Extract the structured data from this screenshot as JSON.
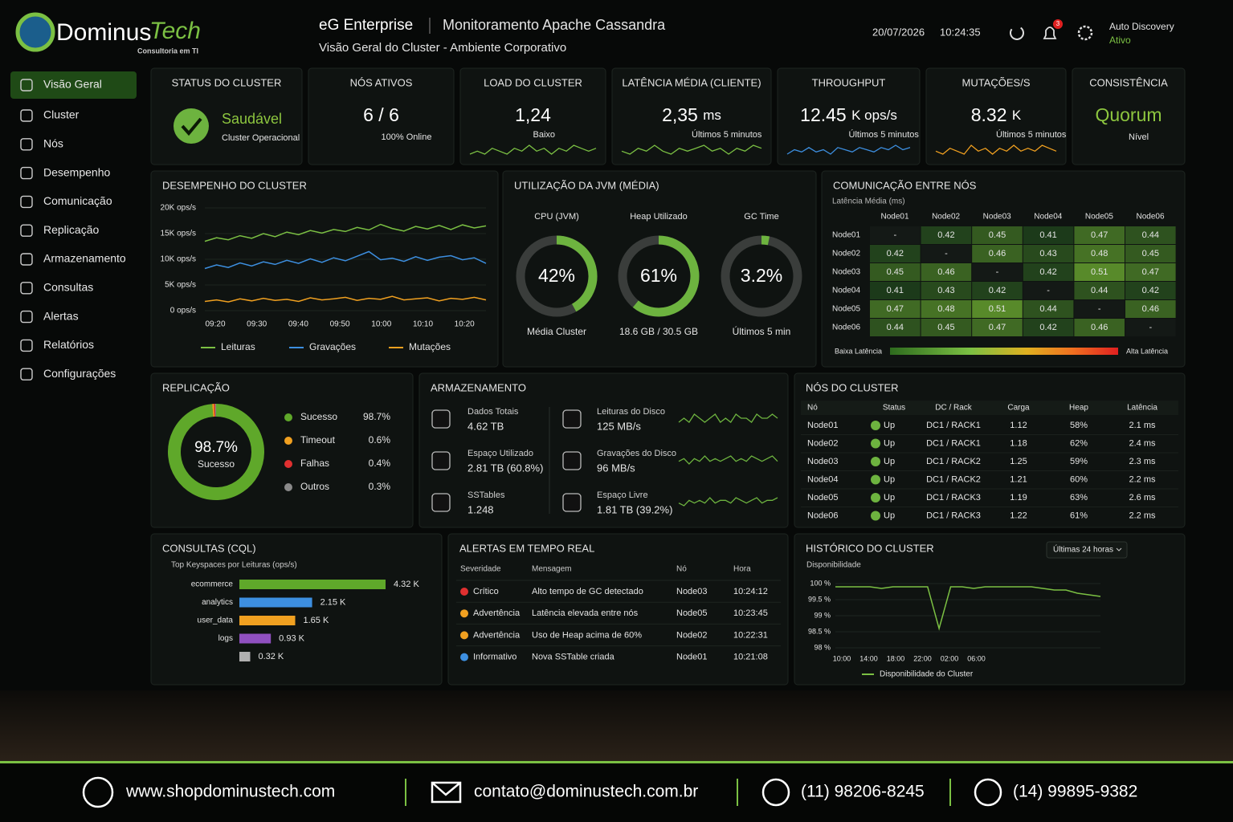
{
  "header": {
    "brand_a": "Dominus",
    "brand_b": "Tech",
    "tagline": "Consultoria em TI",
    "title": "eG Enterprise",
    "subtitle": "Monitoramento Apache Cassandra",
    "description": "Visão Geral do Cluster - Ambiente Corporativo",
    "date": "20/07/2026",
    "time": "10:24:35",
    "notifications": "3",
    "auto_label": "Auto Discovery",
    "auto_status": "Ativo"
  },
  "sidebar": [
    "Visão Geral",
    "Cluster",
    "Nós",
    "Desempenho",
    "Comunicação",
    "Replicação",
    "Armazenamento",
    "Consultas",
    "Alertas",
    "Relatórios",
    "Configurações"
  ],
  "kpis": [
    {
      "title": "STATUS DO CLUSTER",
      "value": "Saudável",
      "sub": "Cluster Operacional"
    },
    {
      "title": "NÓS ATIVOS",
      "value": "6 / 6",
      "sub": "100% Online"
    },
    {
      "title": "LOAD DO CLUSTER",
      "value": "1,24",
      "sub": "Baixo",
      "color": "#7bc043",
      "spark": [
        4,
        5,
        4,
        6,
        5,
        4,
        6,
        5,
        7,
        5,
        6,
        4,
        6,
        5,
        7,
        6,
        5,
        6
      ]
    },
    {
      "title": "LATÊNCIA MÉDIA (CLIENTE)",
      "value": "2,35",
      "unit": "ms",
      "sub": "Últimos 5 minutos",
      "color": "#7bc043",
      "spark": [
        5,
        4,
        6,
        5,
        7,
        5,
        4,
        6,
        5,
        6,
        7,
        5,
        6,
        4,
        6,
        5,
        7,
        6
      ]
    },
    {
      "title": "THROUGHPUT",
      "value": "12.45",
      "unit": "K ops/s",
      "sub": "Últimos 5 minutos",
      "color": "#3d8fe0",
      "spark": [
        4,
        6,
        5,
        7,
        5,
        6,
        4,
        7,
        6,
        5,
        7,
        6,
        5,
        7,
        6,
        8,
        6,
        7
      ]
    },
    {
      "title": "MUTAÇÕES/S",
      "value": "8.32",
      "unit": "K",
      "sub": "Últimos 5 minutos",
      "color": "#f0a020",
      "spark": [
        5,
        4,
        6,
        5,
        4,
        7,
        5,
        6,
        4,
        6,
        5,
        7,
        5,
        6,
        5,
        7,
        6,
        5
      ]
    },
    {
      "title": "CONSISTÊNCIA",
      "value": "Quorum",
      "sub": "Nível"
    }
  ],
  "performance": {
    "title": "DESEMPENHO DO CLUSTER",
    "ylim": [
      0,
      20000
    ],
    "yticks": [
      {
        "value": 20000,
        "label": "20K ops/s"
      },
      {
        "value": 15000,
        "label": "15K ops/s"
      },
      {
        "value": 10000,
        "label": "10K ops/s"
      },
      {
        "value": 5000,
        "label": "5K ops/s"
      },
      {
        "value": 0,
        "label": "0 ops/s"
      }
    ],
    "xticks": [
      "09:20",
      "09:30",
      "09:40",
      "09:50",
      "10:00",
      "10:10",
      "10:20"
    ],
    "series": [
      {
        "name": "Leituras",
        "color": "#7bc043",
        "values": [
          13500,
          14200,
          13800,
          14600,
          14100,
          15000,
          14400,
          15300,
          14800,
          15600,
          15100,
          15800,
          15400,
          16200,
          15700,
          16800,
          16000,
          15500,
          16400,
          15900,
          16600,
          15800,
          16700,
          16100,
          16500
        ]
      },
      {
        "name": "Gravações",
        "color": "#3d8fe0",
        "values": [
          8200,
          8900,
          8400,
          9300,
          8700,
          9500,
          9000,
          9800,
          9200,
          10100,
          9400,
          10300,
          9700,
          10600,
          11500,
          9900,
          10200,
          9600,
          10500,
          9800,
          10400,
          10700,
          9900,
          10300,
          9200
        ]
      },
      {
        "name": "Mutações",
        "color": "#f0a020",
        "values": [
          1800,
          2100,
          1700,
          2300,
          1900,
          2400,
          2000,
          2200,
          1800,
          2500,
          2100,
          2300,
          2600,
          2000,
          2400,
          2200,
          2800,
          2100,
          2300,
          2500,
          1900,
          2400,
          2200,
          2600,
          2100
        ]
      }
    ]
  },
  "jvm": {
    "title": "UTILIZAÇÃO DA JVM (MÉDIA)",
    "gauges": [
      {
        "label": "CPU (JVM)",
        "value": 42,
        "value_label": "42%",
        "sub": "Média Cluster"
      },
      {
        "label": "Heap Utilizado",
        "value": 61,
        "value_label": "61%",
        "sub": "18.6 GB / 30.5 GB"
      },
      {
        "label": "GC Time",
        "value": 3.2,
        "value_label": "3.2%",
        "sub": "Últimos 5 min"
      }
    ]
  },
  "communication": {
    "title": "COMUNICAÇÃO ENTRE NÓS",
    "subtitle": "Latência Média (ms)",
    "columns": [
      "Node01",
      "Node02",
      "Node03",
      "Node04",
      "Node05",
      "Node06"
    ],
    "rows": [
      {
        "name": "Node01",
        "cells": [
          "-",
          "0.42",
          "0.45",
          "0.41",
          "0.47",
          "0.44"
        ]
      },
      {
        "name": "Node02",
        "cells": [
          "0.42",
          "-",
          "0.46",
          "0.43",
          "0.48",
          "0.45"
        ]
      },
      {
        "name": "Node03",
        "cells": [
          "0.45",
          "0.46",
          "-",
          "0.42",
          "0.51",
          "0.47"
        ]
      },
      {
        "name": "Node04",
        "cells": [
          "0.41",
          "0.43",
          "0.42",
          "-",
          "0.44",
          "0.42"
        ]
      },
      {
        "name": "Node05",
        "cells": [
          "0.47",
          "0.48",
          "0.51",
          "0.44",
          "-",
          "0.46"
        ]
      },
      {
        "name": "Node06",
        "cells": [
          "0.44",
          "0.45",
          "0.47",
          "0.42",
          "0.46",
          "-"
        ]
      }
    ],
    "low_label": "Baixa Latência",
    "high_label": "Alta Latência"
  },
  "replication": {
    "title": "REPLICAÇÃO",
    "center_value": "98.7%",
    "center_label": "Sucesso",
    "items": [
      {
        "name": "Sucesso",
        "value": 98.7,
        "value_label": "98.7%",
        "color": "#5fa82a"
      },
      {
        "name": "Timeout",
        "value": 0.6,
        "value_label": "0.6%",
        "color": "#f0a020"
      },
      {
        "name": "Falhas",
        "value": 0.4,
        "value_label": "0.4%",
        "color": "#e03030"
      },
      {
        "name": "Outros",
        "value": 0.3,
        "value_label": "0.3%",
        "color": "#8a8a8a"
      }
    ]
  },
  "storage": {
    "title": "ARMAZENAMENTO",
    "items": [
      {
        "label": "Dados Totais",
        "value": "4.62 TB"
      },
      {
        "label": "Espaço Utilizado",
        "value": "2.81 TB (60.8%)"
      },
      {
        "label": "SSTables",
        "value": "1.248"
      },
      {
        "label": "Leituras do Disco",
        "value": "125 MB/s",
        "spark": [
          5,
          6,
          5,
          7,
          6,
          5,
          6,
          7,
          5,
          6,
          5,
          7,
          6,
          6,
          5,
          7,
          6,
          6,
          7,
          6
        ]
      },
      {
        "label": "Gravações do Disco",
        "value": "96 MB/s",
        "spark": [
          5,
          6,
          4,
          6,
          5,
          7,
          5,
          6,
          5,
          6,
          7,
          5,
          6,
          5,
          7,
          6,
          5,
          6,
          7,
          5
        ]
      },
      {
        "label": "Espaço Livre",
        "value": "1.81 TB (39.2%)",
        "spark": [
          5,
          4,
          6,
          5,
          6,
          5,
          7,
          5,
          6,
          6,
          5,
          7,
          6,
          5,
          6,
          7,
          5,
          6,
          6,
          7
        ]
      }
    ]
  },
  "nodes": {
    "title": "NÓS DO CLUSTER",
    "headers": [
      "Nó",
      "Status",
      "DC / Rack",
      "Carga",
      "Heap",
      "Latência"
    ],
    "rows": [
      [
        "Node01",
        "Up",
        "DC1 / RACK1",
        "1.12",
        "58%",
        "2.1 ms"
      ],
      [
        "Node02",
        "Up",
        "DC1 / RACK1",
        "1.18",
        "62%",
        "2.4 ms"
      ],
      [
        "Node03",
        "Up",
        "DC1 / RACK2",
        "1.25",
        "59%",
        "2.3 ms"
      ],
      [
        "Node04",
        "Up",
        "DC1 / RACK2",
        "1.21",
        "60%",
        "2.2 ms"
      ],
      [
        "Node05",
        "Up",
        "DC1 / RACK3",
        "1.19",
        "63%",
        "2.6 ms"
      ],
      [
        "Node06",
        "Up",
        "DC1 / RACK3",
        "1.22",
        "61%",
        "2.2 ms"
      ]
    ]
  },
  "queries": {
    "title": "CONSULTAS (CQL)",
    "subtitle": "Top Keyspaces por Leituras (ops/s)",
    "xlim": [
      0,
      4320
    ],
    "categories": [
      "ecommerce",
      "analytics",
      "user_data",
      "logs",
      null
    ],
    "values": [
      4320,
      2150,
      1650,
      930,
      320
    ],
    "value_labels": [
      "4.32 K",
      "2.15 K",
      "1.65 K",
      "0.93 K",
      "0.32 K"
    ],
    "colors": [
      "#5fa82a",
      "#3d8fe0",
      "#f0a020",
      "#9050c0",
      "#b0b0b0"
    ]
  },
  "alerts": {
    "title": "ALERTAS EM TEMPO REAL",
    "headers": [
      "Severidade",
      "Mensagem",
      "Nó",
      "Hora"
    ],
    "rows": [
      {
        "severity": "Crítico",
        "color": "#e03030",
        "message": "Alto tempo de GC detectado",
        "node": "Node03",
        "time": "10:24:12"
      },
      {
        "severity": "Advertência",
        "color": "#f0a020",
        "message": "Latência elevada entre nós",
        "node": "Node05",
        "time": "10:23:45"
      },
      {
        "severity": "Advertência",
        "color": "#f0a020",
        "message": "Uso de Heap acima de 60%",
        "node": "Node02",
        "time": "10:22:31"
      },
      {
        "severity": "Informativo",
        "color": "#3d8fe0",
        "message": "Nova SSTable criada",
        "node": "Node01",
        "time": "10:21:08"
      }
    ]
  },
  "history": {
    "title": "HISTÓRICO DO CLUSTER",
    "range": "Últimas 24 horas",
    "subtitle": "Disponibilidade",
    "ylim": [
      98,
      100
    ],
    "yticks": [
      {
        "value": 100,
        "label": "100 %"
      },
      {
        "value": 99.5,
        "label": "99.5 %"
      },
      {
        "value": 99,
        "label": "99 %"
      },
      {
        "value": 98.5,
        "label": "98.5 %"
      },
      {
        "value": 98,
        "label": "98 %"
      }
    ],
    "xticks": [
      "10:00",
      "14:00",
      "18:00",
      "22:00",
      "02:00",
      "06:00"
    ],
    "series": [
      {
        "name": "Disponibilidade do Cluster",
        "color": "#7bc043",
        "values": [
          99.9,
          99.9,
          99.9,
          99.9,
          99.85,
          99.9,
          99.9,
          99.9,
          99.9,
          98.6,
          99.9,
          99.9,
          99.85,
          99.9,
          99.9,
          99.9,
          99.9,
          99.9,
          99.85,
          99.8,
          99.8,
          99.7,
          99.65,
          99.6
        ]
      }
    ]
  },
  "footer": {
    "website": "www.shopdominustech.com",
    "email": "contato@dominustech.com.br",
    "phone1": "(11) 98206-8245",
    "phone2": "(14) 99895-9382"
  }
}
